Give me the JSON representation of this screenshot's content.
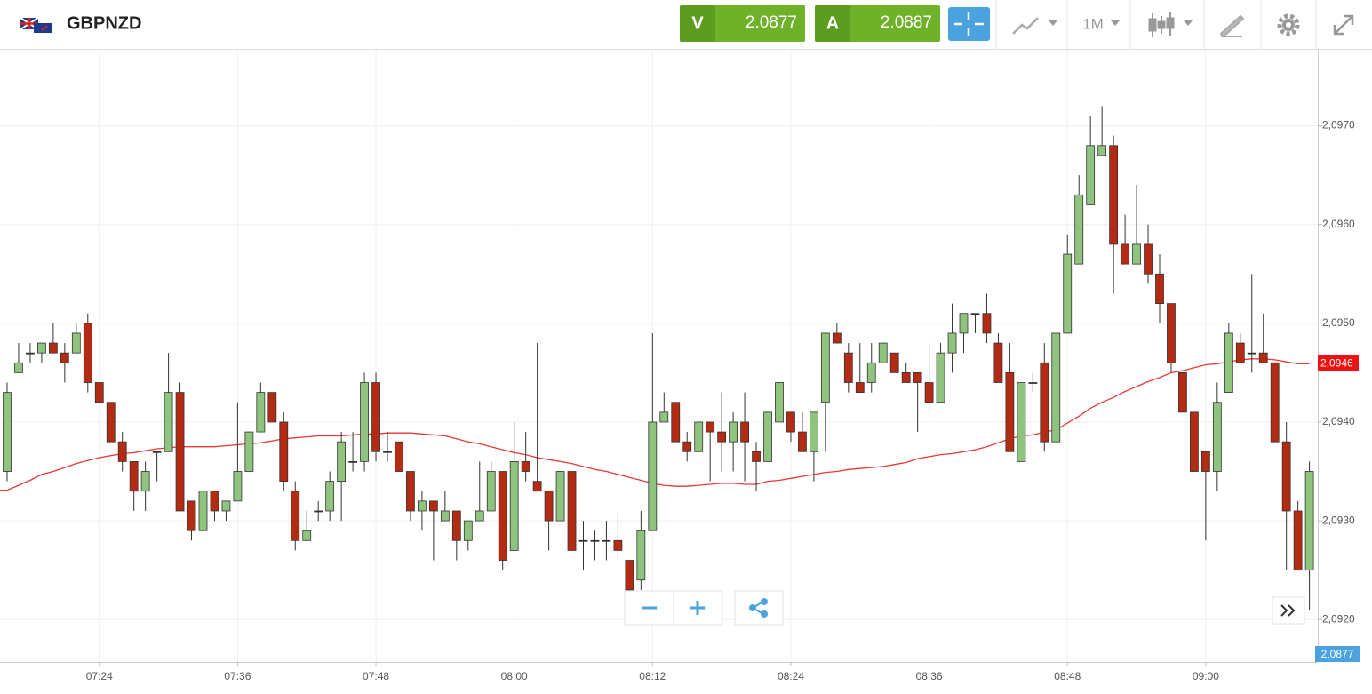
{
  "header": {
    "symbol": "GBPNZD",
    "sell_label": "V",
    "sell_price": "2.0877",
    "buy_label": "A",
    "buy_price": "2.0887",
    "timeframe": "1M"
  },
  "chart_data": {
    "type": "candlestick",
    "categories": [
      "07:16",
      "07:17",
      "07:18",
      "07:19",
      "07:20",
      "07:21",
      "07:22",
      "07:23",
      "07:24",
      "07:25",
      "07:26",
      "07:27",
      "07:28",
      "07:29",
      "07:30",
      "07:31",
      "07:32",
      "07:33",
      "07:34",
      "07:35",
      "07:36",
      "07:37",
      "07:38",
      "07:39",
      "07:40",
      "07:41",
      "07:42",
      "07:43",
      "07:44",
      "07:45",
      "07:46",
      "07:47",
      "07:48",
      "07:49",
      "07:50",
      "07:51",
      "07:52",
      "07:53",
      "07:54",
      "07:55",
      "07:56",
      "07:57",
      "07:58",
      "07:59",
      "08:00",
      "08:01",
      "08:02",
      "08:03",
      "08:04",
      "08:05",
      "08:06",
      "08:07",
      "08:08",
      "08:09",
      "08:10",
      "08:11",
      "08:12",
      "08:13",
      "08:14",
      "08:15",
      "08:16",
      "08:17",
      "08:18",
      "08:19",
      "08:20",
      "08:21",
      "08:22",
      "08:23",
      "08:24",
      "08:25",
      "08:26",
      "08:27",
      "08:28",
      "08:29",
      "08:30",
      "08:31",
      "08:32",
      "08:33",
      "08:34",
      "08:35",
      "08:36",
      "08:37",
      "08:38",
      "08:39",
      "08:40",
      "08:41",
      "08:42",
      "08:43",
      "08:44",
      "08:45",
      "08:46",
      "08:47",
      "08:48",
      "08:49",
      "08:50",
      "08:51",
      "08:52",
      "08:53",
      "08:54",
      "08:55",
      "08:56",
      "08:57",
      "08:58",
      "08:59",
      "09:00",
      "09:01",
      "09:02",
      "09:03",
      "09:04",
      "09:05",
      "09:06",
      "09:07",
      "09:08",
      "09:09"
    ],
    "open": [
      2.0935,
      2.0945,
      2.0947,
      2.0947,
      2.0948,
      2.0947,
      2.0947,
      2.095,
      2.0944,
      2.0942,
      2.0938,
      2.0936,
      2.0933,
      2.0937,
      2.0937,
      2.0943,
      2.0932,
      2.0929,
      2.0933,
      2.0931,
      2.0932,
      2.0935,
      2.0939,
      2.0943,
      2.094,
      2.0933,
      2.0928,
      2.0931,
      2.0931,
      2.0934,
      2.0936,
      2.0936,
      2.0944,
      2.0937,
      2.0938,
      2.0935,
      2.0931,
      2.0932,
      2.093,
      2.0931,
      2.0928,
      2.093,
      2.0931,
      2.0935,
      2.0927,
      2.0936,
      2.0934,
      2.0933,
      2.093,
      2.0935,
      2.0928,
      2.0928,
      2.0928,
      2.0928,
      2.0926,
      2.0924,
      2.0929,
      2.094,
      2.0942,
      2.0938,
      2.0937,
      2.094,
      2.0939,
      2.0938,
      2.094,
      2.0937,
      2.0936,
      2.094,
      2.0941,
      2.0939,
      2.0937,
      2.0942,
      2.0949,
      2.0947,
      2.0944,
      2.0944,
      2.0946,
      2.0947,
      2.0945,
      2.0945,
      2.0944,
      2.0942,
      2.0947,
      2.0949,
      2.0951,
      2.0951,
      2.0948,
      2.0945,
      2.0936,
      2.0944,
      2.0946,
      2.0938,
      2.0949,
      2.0956,
      2.0962,
      2.0967,
      2.0968,
      2.0958,
      2.0956,
      2.0958,
      2.0955,
      2.0952,
      2.0945,
      2.0941,
      2.0937,
      2.0935,
      2.0943,
      2.0948,
      2.0947,
      2.0947,
      2.0946,
      2.0938,
      2.0931,
      2.0925
    ],
    "high": [
      2.0944,
      2.0948,
      2.0948,
      2.0948,
      2.095,
      2.0948,
      2.095,
      2.0951,
      2.0944,
      2.0942,
      2.0939,
      2.0936,
      2.0936,
      2.0937,
      2.0947,
      2.0944,
      2.0932,
      2.094,
      2.0933,
      2.0932,
      2.0942,
      2.0939,
      2.0944,
      2.0943,
      2.0941,
      2.0934,
      2.0931,
      2.0932,
      2.0935,
      2.0939,
      2.0939,
      2.0945,
      2.0945,
      2.0939,
      2.0938,
      2.0935,
      2.0933,
      2.0932,
      2.0933,
      2.0931,
      2.093,
      2.0936,
      2.0936,
      2.0935,
      2.094,
      2.0939,
      2.0948,
      2.0933,
      2.0935,
      2.0935,
      2.093,
      2.0929,
      2.093,
      2.0931,
      2.0926,
      2.0931,
      2.0949,
      2.0943,
      2.0942,
      2.0939,
      2.094,
      2.094,
      2.0943,
      2.0941,
      2.0943,
      2.0938,
      2.0941,
      2.0944,
      2.0941,
      2.0941,
      2.0941,
      2.0949,
      2.095,
      2.0948,
      2.0948,
      2.0948,
      2.0948,
      2.0947,
      2.0946,
      2.0945,
      2.0948,
      2.0948,
      2.0952,
      2.0951,
      2.0951,
      2.0953,
      2.0949,
      2.0948,
      2.0944,
      2.0945,
      2.0948,
      2.0949,
      2.0959,
      2.0965,
      2.0971,
      2.0972,
      2.0969,
      2.0961,
      2.0964,
      2.096,
      2.0957,
      2.0952,
      2.0945,
      2.0941,
      2.0937,
      2.0944,
      2.095,
      2.0949,
      2.0955,
      2.0951,
      2.0946,
      2.094,
      2.0932,
      2.0936
    ],
    "low": [
      2.0934,
      2.0945,
      2.0946,
      2.0946,
      2.0947,
      2.0944,
      2.0947,
      2.0943,
      2.0942,
      2.0938,
      2.0935,
      2.0931,
      2.0931,
      2.0934,
      2.0937,
      2.0931,
      2.0928,
      2.0929,
      2.093,
      2.093,
      2.0932,
      2.0935,
      2.0939,
      2.094,
      2.0933,
      2.0927,
      2.0928,
      2.093,
      2.093,
      2.093,
      2.0935,
      2.0935,
      2.0936,
      2.0936,
      2.0935,
      2.093,
      2.0929,
      2.0926,
      2.093,
      2.0926,
      2.0927,
      2.093,
      2.0931,
      2.0925,
      2.0927,
      2.0934,
      2.0933,
      2.0927,
      2.093,
      2.0927,
      2.0925,
      2.0926,
      2.0926,
      2.0926,
      2.0922,
      2.0923,
      2.0929,
      2.094,
      2.0938,
      2.0936,
      2.0937,
      2.0934,
      2.0935,
      2.0935,
      2.0934,
      2.0933,
      2.0936,
      2.094,
      2.0938,
      2.0937,
      2.0934,
      2.0937,
      2.0948,
      2.0943,
      2.0943,
      2.0943,
      2.0946,
      2.0945,
      2.0944,
      2.0939,
      2.0941,
      2.0942,
      2.0945,
      2.0947,
      2.0949,
      2.0948,
      2.0944,
      2.0937,
      2.0936,
      2.0943,
      2.0937,
      2.0938,
      2.0949,
      2.0956,
      2.0962,
      2.0967,
      2.0953,
      2.0956,
      2.0956,
      2.0954,
      2.095,
      2.0945,
      2.0941,
      2.0935,
      2.0928,
      2.0933,
      2.0943,
      2.0946,
      2.0945,
      2.0946,
      2.0938,
      2.0925,
      2.0925,
      2.0921
    ],
    "close": [
      2.0943,
      2.0946,
      2.0947,
      2.0948,
      2.0947,
      2.0946,
      2.0949,
      2.0944,
      2.0942,
      2.0938,
      2.0936,
      2.0933,
      2.0935,
      2.0937,
      2.0943,
      2.0931,
      2.0929,
      2.0933,
      2.0931,
      2.0932,
      2.0935,
      2.0939,
      2.0943,
      2.094,
      2.0934,
      2.0928,
      2.0929,
      2.0931,
      2.0934,
      2.0938,
      2.0936,
      2.0944,
      2.0937,
      2.0937,
      2.0935,
      2.0931,
      2.0932,
      2.0931,
      2.0931,
      2.0928,
      2.093,
      2.0931,
      2.0935,
      2.0926,
      2.0936,
      2.0935,
      2.0933,
      2.093,
      2.0935,
      2.0927,
      2.0928,
      2.0928,
      2.0928,
      2.0927,
      2.0923,
      2.0929,
      2.094,
      2.0941,
      2.0938,
      2.0937,
      2.094,
      2.0939,
      2.0938,
      2.094,
      2.0938,
      2.0936,
      2.0941,
      2.0944,
      2.0939,
      2.0937,
      2.0941,
      2.0949,
      2.0948,
      2.0944,
      2.0943,
      2.0946,
      2.0948,
      2.0945,
      2.0944,
      2.0944,
      2.0942,
      2.0947,
      2.0949,
      2.0951,
      2.0951,
      2.0949,
      2.0944,
      2.0937,
      2.0944,
      2.0944,
      2.0938,
      2.0949,
      2.0957,
      2.0963,
      2.0968,
      2.0968,
      2.0958,
      2.0956,
      2.0958,
      2.0955,
      2.0952,
      2.0946,
      2.0941,
      2.0935,
      2.0935,
      2.0942,
      2.0949,
      2.0946,
      2.0947,
      2.0946,
      2.0938,
      2.0931,
      2.0925,
      2.0935
    ],
    "up_color": "#8fc47e",
    "down_color": "#b42b13",
    "moving_average": {
      "color": "#e53935",
      "values": [
        2.09331,
        2.09336,
        2.09341,
        2.09347,
        2.0935,
        2.09354,
        2.09358,
        2.09361,
        2.09364,
        2.09366,
        2.09368,
        2.09369,
        2.09371,
        2.09373,
        2.09374,
        2.09375,
        2.09375,
        2.09375,
        2.09375,
        2.09376,
        2.09377,
        2.09378,
        2.09379,
        2.09381,
        2.09383,
        2.09384,
        2.09385,
        2.09386,
        2.09386,
        2.09386,
        2.09387,
        2.09388,
        2.09388,
        2.09389,
        2.09389,
        2.09389,
        2.09388,
        2.09387,
        2.09386,
        2.09383,
        2.0938,
        2.09378,
        2.09375,
        2.09372,
        2.09369,
        2.09367,
        2.09364,
        2.09362,
        2.0936,
        2.09358,
        2.09355,
        2.09352,
        2.0935,
        2.09347,
        2.09344,
        2.09341,
        2.09338,
        2.09336,
        2.09335,
        2.09335,
        2.09336,
        2.09337,
        2.09338,
        2.09338,
        2.09337,
        2.09337,
        2.0934,
        2.09341,
        2.09343,
        2.09345,
        2.09347,
        2.09349,
        2.0935,
        2.09352,
        2.09353,
        2.09354,
        2.09355,
        2.09357,
        2.09359,
        2.09363,
        2.09365,
        2.09367,
        2.09368,
        2.0937,
        2.09372,
        2.09375,
        2.09379,
        2.09383,
        2.09386,
        2.09387,
        2.0939,
        2.09392,
        2.09399,
        2.09406,
        2.09414,
        2.0942,
        2.09425,
        2.09431,
        2.09436,
        2.09441,
        2.09445,
        2.0945,
        2.09452,
        2.09455,
        2.09458,
        2.09459,
        2.09461,
        2.09463,
        2.09464,
        2.09464,
        2.09463,
        2.09461,
        2.09459,
        2.09459
      ]
    },
    "ylim": [
      2.09157,
      2.09777
    ],
    "yticks": [
      {
        "value": 2.092,
        "label": "2,0920"
      },
      {
        "value": 2.093,
        "label": "2,0930"
      },
      {
        "value": 2.094,
        "label": "2,0940"
      },
      {
        "value": 2.095,
        "label": "2,0950"
      },
      {
        "value": 2.096,
        "label": "2,0960"
      },
      {
        "value": 2.097,
        "label": "2,0970"
      }
    ],
    "xticks": [
      "07:24",
      "07:36",
      "07:48",
      "08:00",
      "08:12",
      "08:24",
      "08:36",
      "08:48",
      "09:00"
    ],
    "grid": true,
    "price_marker": {
      "value": 2.0946,
      "label": "2,0946",
      "color": "#ee1111"
    },
    "last_price_label": "2,0877",
    "last_price_color": "#4aa3df"
  }
}
